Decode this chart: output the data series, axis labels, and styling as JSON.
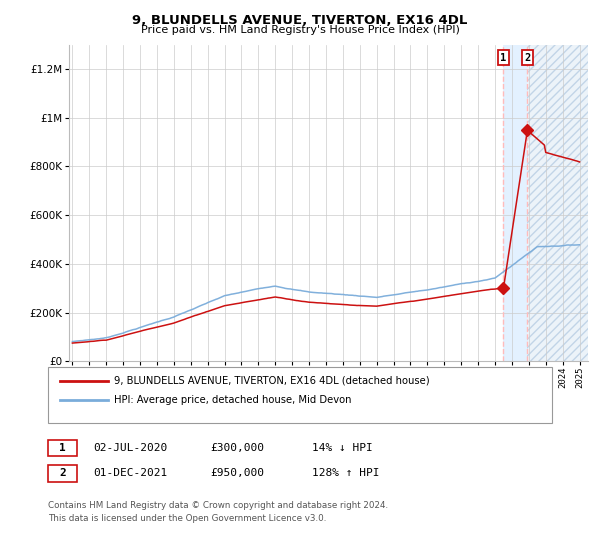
{
  "title1": "9, BLUNDELLS AVENUE, TIVERTON, EX16 4DL",
  "title2": "Price paid vs. HM Land Registry's House Price Index (HPI)",
  "legend_line1": "9, BLUNDELLS AVENUE, TIVERTON, EX16 4DL (detached house)",
  "legend_line2": "HPI: Average price, detached house, Mid Devon",
  "annotation1_date": "02-JUL-2020",
  "annotation1_price": "£300,000",
  "annotation1_hpi": "14% ↓ HPI",
  "annotation2_date": "01-DEC-2021",
  "annotation2_price": "£950,000",
  "annotation2_hpi": "128% ↑ HPI",
  "footer": "Contains HM Land Registry data © Crown copyright and database right 2024.\nThis data is licensed under the Open Government Licence v3.0.",
  "hpi_color": "#7aacda",
  "price_color": "#cc1111",
  "marker_color": "#cc1111",
  "vline_color": "#ffbbbb",
  "shade_color": "#ddeeff",
  "ylim": [
    0,
    1300000
  ],
  "yticks": [
    0,
    200000,
    400000,
    600000,
    800000,
    1000000,
    1200000
  ],
  "ytick_labels": [
    "£0",
    "£200K",
    "£400K",
    "£600K",
    "£800K",
    "£1M",
    "£1.2M"
  ],
  "xstart_year": 1995,
  "xend_year": 2025,
  "sale1_date_num": 2020.5,
  "sale1_price": 300000,
  "sale2_date_num": 2021.917,
  "sale2_price": 950000
}
